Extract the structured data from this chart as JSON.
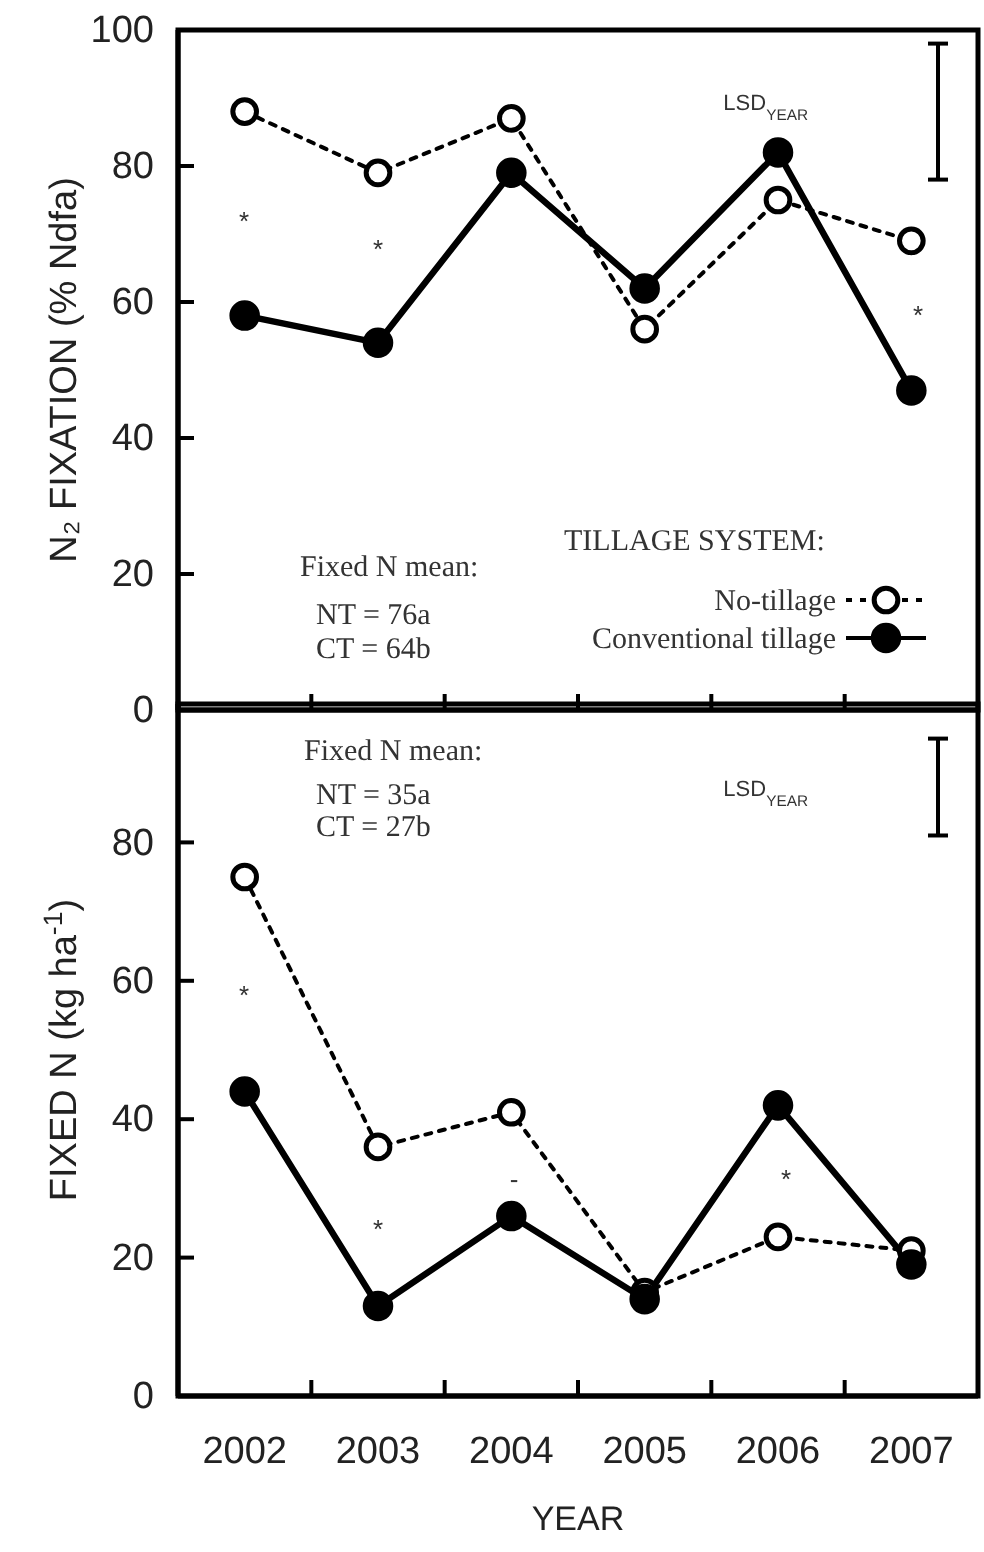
{
  "chart_data": [
    {
      "type": "line",
      "ylabel": "N₂ FIXATION  (% Ndfa)",
      "categories": [
        "2002",
        "2003",
        "2004",
        "2005",
        "2006",
        "2007"
      ],
      "ylim": [
        0,
        100
      ],
      "yticks": [
        0,
        20,
        40,
        60,
        80,
        100
      ],
      "tick_labels": "y",
      "marker": "circle",
      "legend": "bottom right",
      "legend_title": "TILLAGE SYSTEM:",
      "series": [
        {
          "name": "No-tillage",
          "color": "#000000",
          "line_style": "dotted",
          "values": [
            88,
            79,
            87,
            56,
            75,
            69
          ]
        },
        {
          "name": "Conventional tillage",
          "color": "#000000",
          "line_style": "solid",
          "values": [
            58,
            54,
            79,
            62,
            82,
            47
          ]
        }
      ],
      "annotations": [
        "Fixed N mean:",
        "NT = 76a",
        "CT = 64b",
        "LSD$_{YEAR}$",
        "*",
        "*",
        "*"
      ]
    },
    {
      "type": "line",
      "ylabel": "FIXED N  (kg ha$^{-1}$)",
      "xlabel": "YEAR",
      "categories": [
        "2002",
        "2003",
        "2004",
        "2005",
        "2006",
        "2007"
      ],
      "ylim": [
        0,
        100
      ],
      "yticks": [
        0,
        20,
        40,
        60,
        80
      ],
      "marker": "circle",
      "series": [
        {
          "color": "#000000",
          "line_style": "dotted",
          "values": [
            75,
            36,
            41,
            15,
            23,
            21
          ]
        },
        {
          "color": "#000000",
          "line_style": "solid",
          "values": [
            44,
            13,
            26,
            14,
            42,
            19
          ]
        }
      ],
      "annotations": [
        "Fixed N mean:",
        "NT = 35a",
        "CT = 27b",
        "LSD$_{YEAR}$",
        "*",
        "*",
        "-",
        "*"
      ]
    }
  ]
}
